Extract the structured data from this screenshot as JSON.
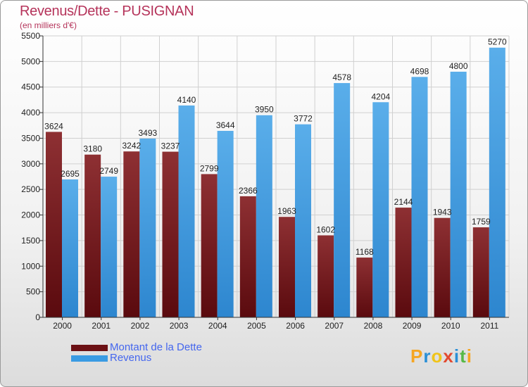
{
  "title": "Revenus/Dette - PUSIGNAN",
  "subtitle": "(en milliers d'€)",
  "logo": {
    "text": "Proxiti",
    "letters": [
      {
        "ch": "P",
        "color": "#f5a623"
      },
      {
        "ch": "r",
        "color": "#2a8fd6"
      },
      {
        "ch": "o",
        "color": "#f0c419"
      },
      {
        "ch": "x",
        "color": "#e2492f"
      },
      {
        "ch": "i",
        "color": "#2a8fd6"
      },
      {
        "ch": "t",
        "color": "#57b947"
      },
      {
        "ch": "i",
        "color": "#f5a623"
      }
    ]
  },
  "chart_data": {
    "type": "bar",
    "title": "Revenus/Dette - PUSIGNAN",
    "ylabel": "(en milliers d'€)",
    "xlabel": "",
    "categories": [
      "2000",
      "2001",
      "2002",
      "2003",
      "2004",
      "2005",
      "2006",
      "2007",
      "2008",
      "2009",
      "2010",
      "2011"
    ],
    "ylim": [
      0,
      5500
    ],
    "yticks": [
      0,
      500,
      1000,
      1500,
      2000,
      2500,
      3000,
      3500,
      4000,
      4500,
      5000,
      5500
    ],
    "grid": true,
    "legend_position": "bottom-left",
    "series": [
      {
        "name": "Montant de la Dette",
        "color": "#7b1f24",
        "values": [
          3624,
          3180,
          3242,
          3237,
          2799,
          2366,
          1963,
          1602,
          1168,
          2144,
          1943,
          1759
        ]
      },
      {
        "name": "Revenus",
        "color": "#3a9be3",
        "values": [
          2695,
          2749,
          3493,
          4140,
          3644,
          3950,
          3772,
          4578,
          4204,
          4698,
          4800,
          5270
        ]
      }
    ]
  }
}
